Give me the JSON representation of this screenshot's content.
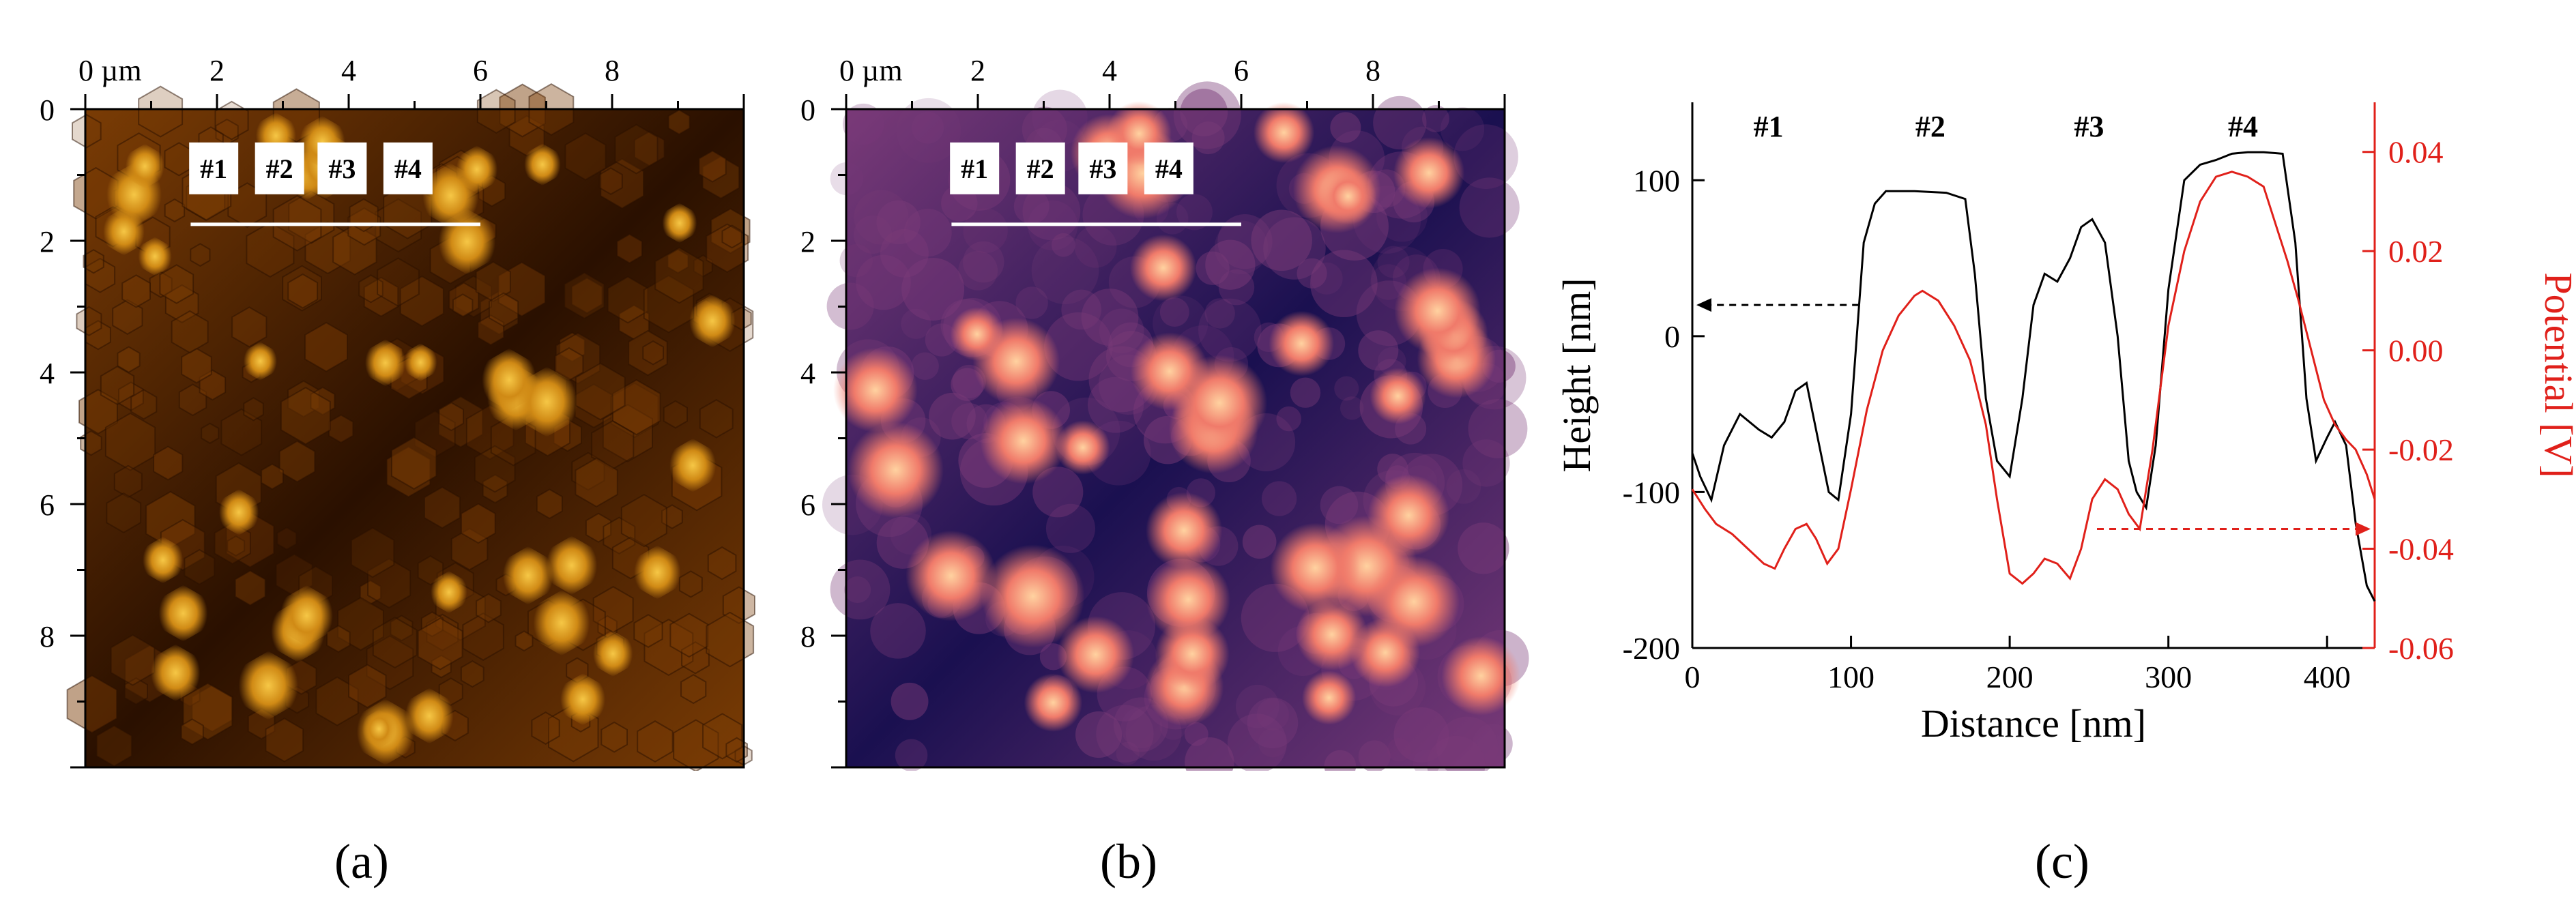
{
  "panels": {
    "a": {
      "label": "(a)",
      "x_ticks": [
        "0 µm",
        "2",
        "4",
        "6",
        "8"
      ],
      "y_ticks": [
        "0",
        "2",
        "4",
        "6",
        "8"
      ],
      "markers": [
        "#1",
        "#2",
        "#3",
        "#4"
      ],
      "colors": {
        "dark": "#2a1000",
        "mid": "#7a3c05",
        "bright": "#d08a15",
        "peak": "#f6c746",
        "scanline": "#ffffff"
      }
    },
    "b": {
      "label": "(b)",
      "x_ticks": [
        "0 µm",
        "2",
        "4",
        "6",
        "8"
      ],
      "y_ticks": [
        "0",
        "2",
        "4",
        "6",
        "8"
      ],
      "markers": [
        "#1",
        "#2",
        "#3",
        "#4"
      ],
      "colors": {
        "dark": "#1a1050",
        "mid": "#7a3a78",
        "bright": "#f07a6a",
        "peak": "#ffd2a0",
        "scanline": "#ffffff"
      }
    },
    "c": {
      "label": "(c)"
    }
  },
  "chart_data": {
    "type": "line",
    "xlabel": "Distance [nm]",
    "ylabel_left": "Height [nm]",
    "ylabel_right": "Potential [V]",
    "xlim": [
      0,
      430
    ],
    "ylim_left": [
      -200,
      150
    ],
    "ylim_right": [
      -0.06,
      0.05
    ],
    "x_ticks": [
      0,
      100,
      200,
      300,
      400
    ],
    "y_ticks_left": [
      -200,
      -100,
      0,
      100
    ],
    "y_ticks_right": [
      -0.06,
      -0.04,
      -0.02,
      0.0,
      0.02,
      0.04
    ],
    "x_tick_labels": [
      "0",
      "100",
      "200",
      "300",
      "400"
    ],
    "y_tick_labels_left": [
      "-200",
      "-100",
      "0",
      "100"
    ],
    "y_tick_labels_right": [
      "-0.06",
      "-0.04",
      "-0.02",
      "0.00",
      "0.02",
      "0.04"
    ],
    "annotations": [
      {
        "text": "#1",
        "x": 48
      },
      {
        "text": "#2",
        "x": 150
      },
      {
        "text": "#3",
        "x": 250
      },
      {
        "text": "#4",
        "x": 347
      }
    ],
    "series": [
      {
        "name": "Height",
        "axis": "left",
        "color": "#000000",
        "x": [
          0,
          5,
          12,
          20,
          30,
          42,
          50,
          58,
          65,
          72,
          80,
          86,
          92,
          100,
          108,
          115,
          122,
          140,
          160,
          172,
          178,
          185,
          192,
          200,
          208,
          215,
          222,
          230,
          238,
          245,
          252,
          260,
          268,
          275,
          280,
          286,
          292,
          300,
          310,
          320,
          330,
          340,
          350,
          360,
          372,
          380,
          387,
          393,
          400,
          405,
          412,
          418,
          425,
          430
        ],
        "y": [
          -75,
          -90,
          -105,
          -70,
          -50,
          -60,
          -65,
          -55,
          -35,
          -30,
          -70,
          -100,
          -105,
          -50,
          60,
          85,
          93,
          93,
          92,
          88,
          40,
          -40,
          -80,
          -90,
          -40,
          20,
          40,
          35,
          50,
          70,
          75,
          60,
          0,
          -80,
          -100,
          -110,
          -70,
          30,
          100,
          110,
          113,
          117,
          118,
          118,
          117,
          60,
          -40,
          -80,
          -65,
          -55,
          -70,
          -120,
          -160,
          -170
        ]
      },
      {
        "name": "Potential",
        "axis": "right",
        "color": "#e0201a",
        "x": [
          0,
          8,
          15,
          25,
          35,
          45,
          52,
          58,
          65,
          72,
          78,
          85,
          92,
          100,
          110,
          120,
          130,
          140,
          145,
          155,
          165,
          175,
          185,
          192,
          200,
          208,
          215,
          222,
          230,
          238,
          245,
          252,
          260,
          268,
          275,
          282,
          290,
          300,
          310,
          320,
          330,
          340,
          350,
          360,
          368,
          375,
          382,
          390,
          398,
          405,
          412,
          418,
          425,
          430
        ],
        "y": [
          -0.028,
          -0.032,
          -0.035,
          -0.037,
          -0.04,
          -0.043,
          -0.044,
          -0.04,
          -0.036,
          -0.035,
          -0.038,
          -0.043,
          -0.04,
          -0.028,
          -0.012,
          0.0,
          0.007,
          0.011,
          0.012,
          0.01,
          0.005,
          -0.002,
          -0.015,
          -0.03,
          -0.045,
          -0.047,
          -0.045,
          -0.042,
          -0.043,
          -0.046,
          -0.04,
          -0.03,
          -0.026,
          -0.028,
          -0.033,
          -0.036,
          -0.02,
          0.005,
          0.02,
          0.03,
          0.035,
          0.036,
          0.035,
          0.033,
          0.025,
          0.018,
          0.01,
          0.0,
          -0.01,
          -0.015,
          -0.018,
          -0.02,
          -0.025,
          -0.03
        ]
      }
    ]
  }
}
